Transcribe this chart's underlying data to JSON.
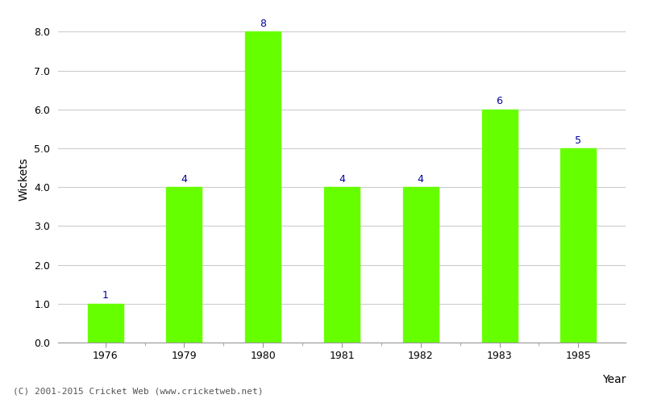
{
  "categories": [
    "1976",
    "1979",
    "1980",
    "1981",
    "1982",
    "1983",
    "1985"
  ],
  "values": [
    1,
    4,
    8,
    4,
    4,
    6,
    5
  ],
  "bar_color": "#66ff00",
  "bar_edge_color": "#66ff00",
  "ylabel": "Wickets",
  "xlabel": "Year",
  "ylim": [
    0,
    8.4
  ],
  "yticks": [
    0.0,
    1.0,
    2.0,
    3.0,
    4.0,
    5.0,
    6.0,
    7.0,
    8.0
  ],
  "annotation_color": "#000099",
  "annotation_fontsize": 9,
  "grid_color": "#cccccc",
  "background_color": "#ffffff",
  "footer_text": "(C) 2001-2015 Cricket Web (www.cricketweb.net)",
  "footer_fontsize": 8,
  "footer_color": "#555555",
  "axis_label_fontsize": 10,
  "tick_fontsize": 9,
  "bar_width": 0.45
}
